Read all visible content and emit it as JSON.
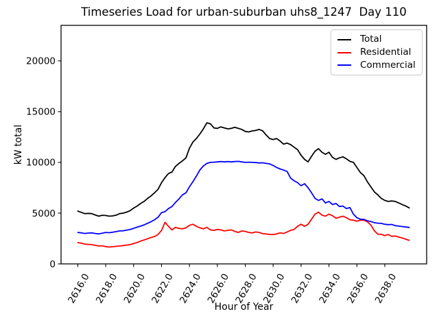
{
  "chart": {
    "title": "Timeseries Load for urban-suburban uhs8_1247  Day 110",
    "xlabel": "Hour of Year",
    "ylabel": "kW total",
    "legend": {
      "position": "upper right",
      "items": [
        {
          "label": "Total",
          "color": "#000000"
        },
        {
          "label": "Residential",
          "color": "#ff0000"
        },
        {
          "label": "Commercial",
          "color": "#0000ff"
        }
      ]
    }
  },
  "chart_data": {
    "type": "line",
    "title": "Timeseries Load for urban-suburban uhs8_1247  Day 110",
    "xlabel": "Hour of Year",
    "ylabel": "kW total",
    "xlim": [
      2614.8,
      2641.0
    ],
    "ylim": [
      0,
      23500
    ],
    "grid": false,
    "legend_position": "upper right",
    "xticks": [
      2616,
      2618,
      2620,
      2622,
      2624,
      2626,
      2628,
      2630,
      2632,
      2634,
      2636,
      2638
    ],
    "xtick_labels": [
      "2616.0",
      "2618.0",
      "2620.0",
      "2622.0",
      "2624.0",
      "2626.0",
      "2628.0",
      "2630.0",
      "2632.0",
      "2634.0",
      "2636.0",
      "2638.0"
    ],
    "yticks": [
      0,
      5000,
      10000,
      15000,
      20000
    ],
    "ytick_labels": [
      "0",
      "5000",
      "10000",
      "15000",
      "20000"
    ],
    "x_start": 2616.0,
    "x_step": 0.25,
    "n_points": 96,
    "series": [
      {
        "name": "Total",
        "color": "#000000",
        "values": [
          5200,
          5080,
          4950,
          4980,
          4950,
          4820,
          4700,
          4790,
          4770,
          4700,
          4730,
          4800,
          4950,
          5000,
          5100,
          5250,
          5500,
          5700,
          5950,
          6150,
          6450,
          6700,
          7000,
          7350,
          8000,
          8500,
          8900,
          9050,
          9600,
          9900,
          10150,
          10450,
          11400,
          12000,
          12350,
          12800,
          13300,
          13900,
          13800,
          13400,
          13350,
          13500,
          13400,
          13300,
          13350,
          13450,
          13350,
          13250,
          13050,
          13000,
          13100,
          13150,
          13250,
          13100,
          12700,
          12350,
          12250,
          12350,
          12100,
          11800,
          11900,
          11750,
          11500,
          11250,
          10700,
          10300,
          10050,
          10600,
          11100,
          11350,
          11000,
          10800,
          11000,
          10500,
          10300,
          10450,
          10550,
          10350,
          10100,
          10000,
          9500,
          9000,
          8700,
          8100,
          7600,
          7100,
          6800,
          6450,
          6250,
          6150,
          6200,
          6150,
          6000,
          5850,
          5700,
          5520
        ]
      },
      {
        "name": "Residential",
        "color": "#ff0000",
        "values": [
          2100,
          2030,
          1950,
          1920,
          1900,
          1820,
          1760,
          1780,
          1700,
          1660,
          1690,
          1730,
          1760,
          1800,
          1850,
          1900,
          2000,
          2110,
          2250,
          2360,
          2480,
          2600,
          2700,
          2900,
          3300,
          4100,
          3700,
          3350,
          3600,
          3500,
          3450,
          3550,
          3800,
          3900,
          3700,
          3550,
          3450,
          3600,
          3350,
          3300,
          3400,
          3350,
          3250,
          3300,
          3350,
          3200,
          3100,
          3250,
          3200,
          3100,
          3050,
          3150,
          3100,
          2980,
          2950,
          2900,
          2900,
          2950,
          3050,
          3000,
          3150,
          3300,
          3400,
          3700,
          3900,
          3700,
          3900,
          4400,
          4900,
          5100,
          4800,
          4700,
          4900,
          4750,
          4500,
          4600,
          4700,
          4550,
          4350,
          4300,
          4200,
          4300,
          4300,
          4150,
          3830,
          3270,
          2930,
          2910,
          2780,
          2900,
          2710,
          2750,
          2640,
          2550,
          2430,
          2320
        ]
      },
      {
        "name": "Commercial",
        "color": "#0000ff",
        "values": [
          3100,
          3060,
          3000,
          3030,
          3060,
          3000,
          2950,
          3020,
          3100,
          3070,
          3120,
          3180,
          3250,
          3260,
          3330,
          3400,
          3500,
          3620,
          3720,
          3840,
          4000,
          4150,
          4350,
          4600,
          5050,
          5150,
          5450,
          5650,
          6050,
          6400,
          6800,
          7000,
          7600,
          8100,
          8650,
          9250,
          9650,
          9900,
          10000,
          10020,
          10050,
          10080,
          10050,
          10080,
          10050,
          10080,
          10100,
          10050,
          10000,
          10020,
          10000,
          9980,
          9950,
          9960,
          9900,
          9850,
          9700,
          9500,
          9350,
          9240,
          9100,
          8450,
          8200,
          8000,
          7700,
          7900,
          7500,
          7000,
          6450,
          6250,
          6400,
          6000,
          6150,
          5850,
          5950,
          5650,
          5700,
          5450,
          5550,
          4900,
          4550,
          4400,
          4380,
          4250,
          4170,
          4060,
          4010,
          3990,
          3900,
          3860,
          3880,
          3770,
          3720,
          3680,
          3630,
          3590
        ]
      }
    ]
  }
}
